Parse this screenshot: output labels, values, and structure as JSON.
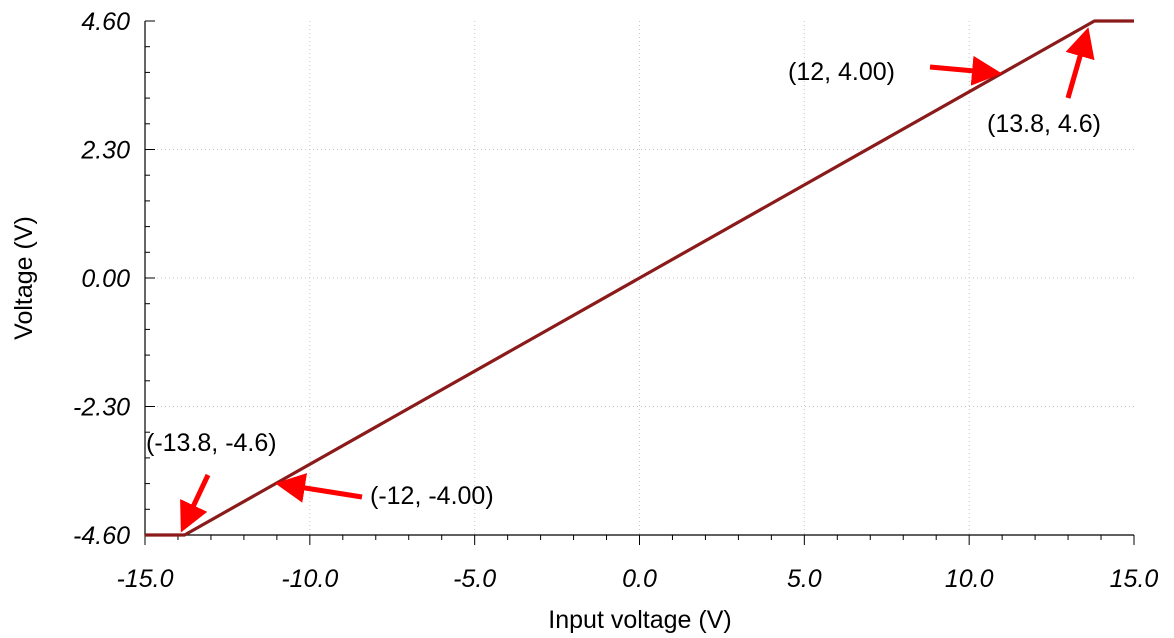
{
  "chart_data": {
    "type": "line",
    "title": "",
    "xlabel": "Input voltage (V)",
    "ylabel": "Voltage (V)",
    "xlim": [
      -15,
      15
    ],
    "ylim": [
      -4.6,
      4.6
    ],
    "grid": true,
    "x_ticks": [
      -15,
      -10,
      -5,
      0,
      5,
      10,
      15
    ],
    "x_tick_labels": [
      "-15.0",
      "-10.0",
      "-5.0",
      "0.0",
      "5.0",
      "10.0",
      "15.0"
    ],
    "y_ticks": [
      -4.6,
      -2.3,
      0,
      2.3,
      4.6
    ],
    "y_tick_labels": [
      "-4.60",
      "-2.30",
      "0.00",
      "2.30",
      "4.60"
    ],
    "series": [
      {
        "color": "#8b1a1a",
        "x": [
          -15,
          -13.8,
          13.8,
          15
        ],
        "y": [
          -4.6,
          -4.6,
          4.6,
          4.6
        ]
      }
    ],
    "annotations": [
      {
        "text": "(12, 4.00)",
        "point": [
          11,
          4.0
        ]
      },
      {
        "text": "(13.8, 4.6)",
        "point": [
          13.8,
          4.6
        ]
      },
      {
        "text": "(-13.8, -4.6)",
        "point": [
          -13.8,
          -4.6
        ]
      },
      {
        "text": "(-12, -4.00)",
        "point": [
          -11,
          -4.0
        ]
      }
    ],
    "arrow_color": "#ff0000"
  }
}
